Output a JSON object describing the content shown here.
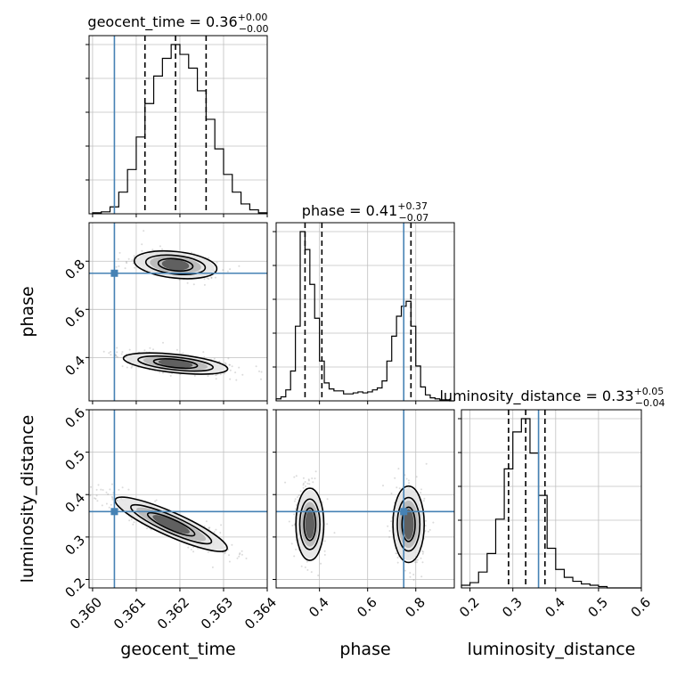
{
  "chart_data": {
    "type": "corner",
    "parameters": [
      "geocent_time",
      "phase",
      "luminosity_distance"
    ],
    "axis_labels": [
      "geocent_time",
      "phase",
      "luminosity_distance"
    ],
    "ranges": {
      "geocent_time": [
        0.35992,
        0.364
      ],
      "phase": [
        0.22,
        0.96
      ],
      "luminosity_distance": [
        0.18,
        0.6
      ]
    },
    "ticks": {
      "geocent_time": [
        "0.360",
        "0.361",
        "0.362",
        "0.363",
        "0.364"
      ],
      "phase": [
        "0.4",
        "0.6",
        "0.8"
      ],
      "luminosity_distance": [
        "0.2",
        "0.3",
        "0.4",
        "0.5",
        "0.6"
      ]
    },
    "titles": [
      {
        "param": "geocent_time",
        "name": "geocent_time",
        "median": "0.36",
        "plus": "+0.00",
        "minus": "−0.00"
      },
      {
        "param": "phase",
        "name": "phase",
        "median": "0.41",
        "plus": "+0.37",
        "minus": "−0.07"
      },
      {
        "param": "luminosity_distance",
        "name": "luminosity_distance",
        "median": "0.33",
        "plus": "+0.05",
        "minus": "−0.04"
      }
    ],
    "truths": {
      "geocent_time": 0.3605,
      "phase": 0.75,
      "luminosity_distance": 0.36
    },
    "quantiles": {
      "geocent_time": [
        0.3612,
        0.3619,
        0.3626
      ],
      "phase": [
        0.34,
        0.41,
        0.78
      ],
      "luminosity_distance": [
        0.29,
        0.33,
        0.375
      ]
    },
    "histograms": {
      "geocent_time": {
        "x": [
          0.3601,
          0.3603,
          0.3605,
          0.3607,
          0.3609,
          0.3611,
          0.3613,
          0.3615,
          0.3617,
          0.3619,
          0.3621,
          0.3623,
          0.3625,
          0.3627,
          0.3629,
          0.3631,
          0.3633,
          0.3635,
          0.3637,
          0.3639
        ],
        "counts": [
          1,
          2,
          7,
          22,
          45,
          78,
          112,
          140,
          158,
          172,
          162,
          148,
          125,
          96,
          66,
          40,
          22,
          10,
          4,
          1
        ]
      },
      "phase": {
        "x": [
          0.23,
          0.25,
          0.27,
          0.29,
          0.31,
          0.33,
          0.35,
          0.37,
          0.39,
          0.41,
          0.43,
          0.45,
          0.47,
          0.49,
          0.51,
          0.53,
          0.55,
          0.57,
          0.59,
          0.61,
          0.63,
          0.65,
          0.67,
          0.69,
          0.71,
          0.73,
          0.75,
          0.77,
          0.79,
          0.81,
          0.83,
          0.85,
          0.87,
          0.89,
          0.91,
          0.93,
          0.95
        ],
        "counts": [
          2,
          4,
          11,
          30,
          75,
          170,
          152,
          117,
          83,
          40,
          18,
          12,
          10,
          10,
          7,
          7,
          8,
          9,
          8,
          9,
          11,
          13,
          20,
          40,
          65,
          85,
          95,
          100,
          75,
          35,
          14,
          6,
          3,
          2,
          1,
          1,
          0
        ]
      },
      "luminosity_distance": {
        "x": [
          0.19,
          0.21,
          0.23,
          0.25,
          0.27,
          0.29,
          0.31,
          0.33,
          0.35,
          0.37,
          0.39,
          0.41,
          0.43,
          0.45,
          0.47,
          0.49,
          0.51,
          0.53,
          0.55,
          0.57,
          0.59
        ],
        "counts": [
          2,
          4,
          12,
          26,
          52,
          90,
          118,
          128,
          102,
          70,
          30,
          14,
          8,
          5,
          3,
          2,
          1,
          0,
          0,
          0,
          0
        ]
      }
    },
    "colors": {
      "truth": "#4682b4",
      "contour": "#000000",
      "quantile": "#000000",
      "grid": "#c0c0c0",
      "scatter": "#999999"
    },
    "grid": true
  }
}
